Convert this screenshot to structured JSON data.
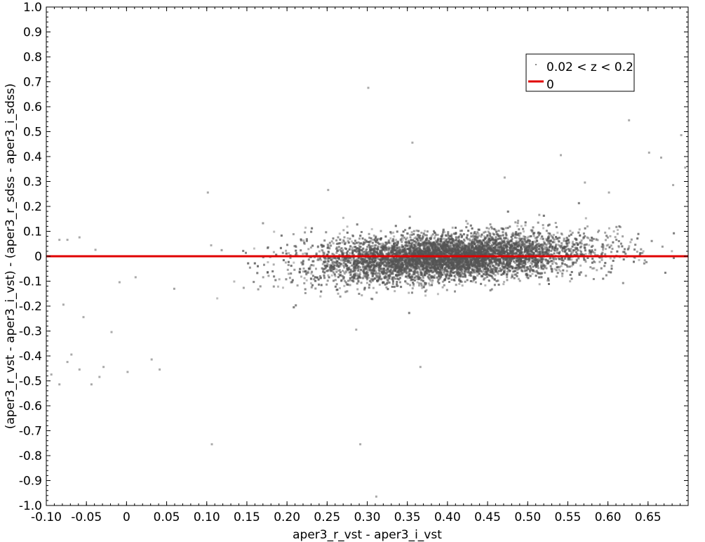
{
  "chart_data": {
    "type": "scatter",
    "title": "",
    "xlabel": "aper3_r_vst - aper3_i_vst",
    "ylabel": "(aper3_r_vst - aper3_i_vst) - (aper3_r_sdss - aper3_i_sdss)",
    "xlim": [
      -0.1,
      0.7
    ],
    "ylim": [
      -1.0,
      1.0
    ],
    "x_ticks": [
      {
        "value": -0.1,
        "label": "-0.10"
      },
      {
        "value": -0.05,
        "label": "-0.05"
      },
      {
        "value": 0.0,
        "label": "0"
      },
      {
        "value": 0.05,
        "label": "0.05"
      },
      {
        "value": 0.1,
        "label": "0.10"
      },
      {
        "value": 0.15,
        "label": "0.15"
      },
      {
        "value": 0.2,
        "label": "0.20"
      },
      {
        "value": 0.25,
        "label": "0.25"
      },
      {
        "value": 0.3,
        "label": "0.30"
      },
      {
        "value": 0.35,
        "label": "0.35"
      },
      {
        "value": 0.4,
        "label": "0.40"
      },
      {
        "value": 0.45,
        "label": "0.45"
      },
      {
        "value": 0.5,
        "label": "0.50"
      },
      {
        "value": 0.55,
        "label": "0.55"
      },
      {
        "value": 0.6,
        "label": "0.60"
      },
      {
        "value": 0.65,
        "label": "0.65"
      }
    ],
    "y_ticks": [
      {
        "value": 1.0,
        "label": "1.0"
      },
      {
        "value": 0.9,
        "label": "0.9"
      },
      {
        "value": 0.8,
        "label": "0.8"
      },
      {
        "value": 0.7,
        "label": "0.7"
      },
      {
        "value": 0.6,
        "label": "0.6"
      },
      {
        "value": 0.5,
        "label": "0.5"
      },
      {
        "value": 0.4,
        "label": "0.4"
      },
      {
        "value": 0.3,
        "label": "0.3"
      },
      {
        "value": 0.2,
        "label": "0.2"
      },
      {
        "value": 0.1,
        "label": "0.1"
      },
      {
        "value": 0.0,
        "label": "0"
      },
      {
        "value": -0.1,
        "label": "-0.1"
      },
      {
        "value": -0.2,
        "label": "-0.2"
      },
      {
        "value": -0.3,
        "label": "-0.3"
      },
      {
        "value": -0.4,
        "label": "-0.4"
      },
      {
        "value": -0.5,
        "label": "-0.5"
      },
      {
        "value": -0.6,
        "label": "-0.6"
      },
      {
        "value": -0.7,
        "label": "-0.7"
      },
      {
        "value": -0.8,
        "label": "-0.8"
      },
      {
        "value": -0.9,
        "label": "-0.9"
      },
      {
        "value": -1.0,
        "label": "-1.0"
      }
    ],
    "grid": false,
    "legend_position": "top-right",
    "series": [
      {
        "name": "0.02 < z < 0.2",
        "kind": "scatter",
        "color": "#888888",
        "description_points": [
          [
            -0.095,
            -0.47
          ],
          [
            -0.085,
            -0.51
          ],
          [
            -0.075,
            -0.42
          ],
          [
            -0.07,
            -0.39
          ],
          [
            -0.06,
            -0.45
          ],
          [
            -0.055,
            -0.24
          ],
          [
            -0.045,
            -0.51
          ],
          [
            -0.035,
            -0.48
          ],
          [
            -0.03,
            -0.44
          ],
          [
            -0.02,
            -0.3
          ],
          [
            -0.01,
            -0.1
          ],
          [
            0.0,
            -0.46
          ],
          [
            0.01,
            -0.08
          ],
          [
            0.03,
            -0.41
          ],
          [
            0.04,
            -0.45
          ],
          [
            -0.085,
            0.07
          ],
          [
            -0.075,
            0.07
          ],
          [
            -0.06,
            0.08
          ],
          [
            -0.04,
            0.03
          ],
          [
            -0.08,
            -0.19
          ],
          [
            0.1,
            0.26
          ],
          [
            0.105,
            -0.75
          ],
          [
            0.29,
            -0.75
          ],
          [
            0.31,
            -0.96
          ],
          [
            0.3,
            0.68
          ],
          [
            0.355,
            0.46
          ],
          [
            0.365,
            -0.44
          ],
          [
            0.285,
            -0.29
          ],
          [
            0.25,
            0.27
          ],
          [
            0.54,
            0.41
          ],
          [
            0.625,
            0.55
          ],
          [
            0.65,
            0.42
          ],
          [
            0.69,
            0.49
          ],
          [
            0.695,
            0.36
          ],
          [
            0.665,
            0.4
          ],
          [
            0.68,
            0.29
          ],
          [
            0.6,
            0.26
          ],
          [
            0.57,
            0.3
          ],
          [
            0.47,
            0.32
          ]
        ],
        "cluster": {
          "x_center": 0.4,
          "y_center": 0.0,
          "trend_slope": 0.15,
          "count": 9000
        }
      },
      {
        "name": "0",
        "kind": "line",
        "color": "#e00000",
        "y_value": 0.0
      }
    ]
  }
}
